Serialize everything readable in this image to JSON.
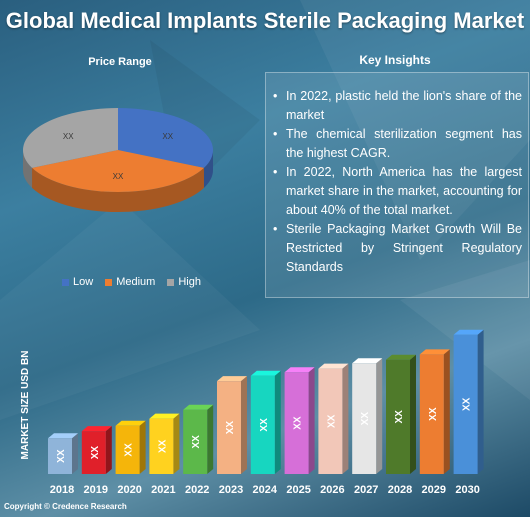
{
  "title": "Global Medical Implants Sterile Packaging Market",
  "pie": {
    "title": "Price Range",
    "legend": [
      {
        "label": "Low",
        "color": "#4472c4"
      },
      {
        "label": "Medium",
        "color": "#ed7d31"
      },
      {
        "label": "High",
        "color": "#a5a5a5"
      }
    ]
  },
  "insights": {
    "title": "Key Insights",
    "items": [
      "In 2022, plastic held the lion's share of the market",
      "The chemical sterilization segment has the highest CAGR.",
      "In 2022, North America has the largest market share in the market, accounting for about 40% of the total market.",
      "Sterile Packaging Market Growth Will Be Restricted by Stringent Regulatory Standards"
    ]
  },
  "copyright": "Copyright © Credence Research",
  "chart_data": [
    {
      "type": "pie",
      "title": "Price Range",
      "categories": [
        "Low",
        "Medium",
        "High"
      ],
      "values": [
        32,
        36,
        32
      ],
      "data_labels": [
        "XX",
        "XX",
        "XX"
      ],
      "colors": [
        "#4472c4",
        "#ed7d31",
        "#a5a5a5"
      ],
      "legend": "bottom"
    },
    {
      "type": "bar",
      "ylabel": "MARKET SIZE USD BN",
      "categories": [
        "2018",
        "2019",
        "2020",
        "2021",
        "2022",
        "2023",
        "2024",
        "2025",
        "2026",
        "2027",
        "2028",
        "2029",
        "2030"
      ],
      "values": [
        1.0,
        1.2,
        1.35,
        1.55,
        1.8,
        2.6,
        2.75,
        2.85,
        2.95,
        3.1,
        3.2,
        3.35,
        3.9
      ],
      "data_labels": [
        "XX",
        "XX",
        "XX",
        "XX",
        "XX",
        "XX",
        "XX",
        "XX",
        "XX",
        "XX",
        "XX",
        "XX",
        "XX"
      ],
      "colors": [
        "#8fb4d9",
        "#e0202a",
        "#f5b50a",
        "#ffd21f",
        "#5cb84a",
        "#f4b183",
        "#17d6c0",
        "#d66fd8",
        "#f2c7b8",
        "#e6e6e6",
        "#4f7a2a",
        "#ed7d31",
        "#4a90d9"
      ],
      "ylim": [
        0,
        4.2
      ],
      "grid": false
    }
  ]
}
